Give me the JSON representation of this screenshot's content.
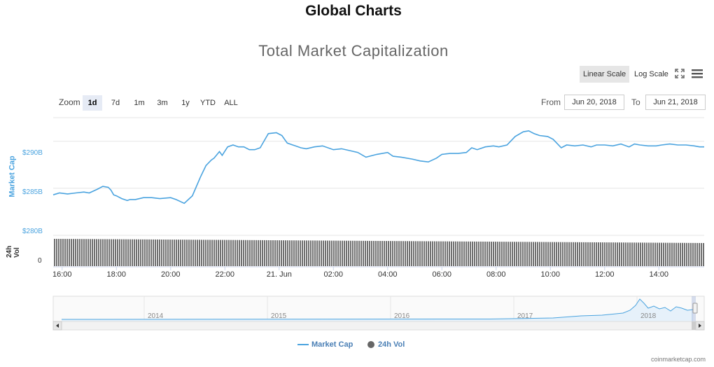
{
  "header": {
    "title": "Global Charts"
  },
  "controls": {
    "linear_label": "Linear Scale",
    "log_label": "Log Scale",
    "zoom_label": "Zoom",
    "zoom_buttons": [
      "1d",
      "7d",
      "1m",
      "3m",
      "1y",
      "YTD",
      "ALL"
    ],
    "from_label": "From",
    "from_value": "Jun 20, 2018",
    "to_label": "To",
    "to_value": "Jun 21, 2018",
    "selected_zoom": "1d",
    "active_scale": "linear",
    "icons": [
      "fullscreen-icon",
      "hamburger-menu-icon"
    ]
  },
  "chart_data": {
    "type": "line",
    "title": "Total Market Capitalization",
    "ylabel": "Market Cap",
    "y_tick_labels": [
      "$290B",
      "$285B",
      "$280B"
    ],
    "y_ticks": [
      290,
      285,
      280
    ],
    "ylim": [
      280,
      292.5
    ],
    "vol_label": "24h Vol",
    "vol_tick_label": "0",
    "x_tick_labels": [
      "16:00",
      "18:00",
      "20:00",
      "22:00",
      "21. Jun",
      "02:00",
      "04:00",
      "06:00",
      "08:00",
      "10:00",
      "12:00",
      "14:00"
    ],
    "x_tick_hours": [
      0,
      2,
      4,
      6,
      8,
      10,
      12,
      14,
      16,
      18,
      20,
      22
    ],
    "x_range_hours": [
      -0.33,
      23.67
    ],
    "series": [
      {
        "name": "Market Cap",
        "color": "#4aa3df",
        "x": [
          -0.33,
          -0.1,
          0.2,
          0.5,
          0.8,
          1.0,
          1.3,
          1.5,
          1.7,
          1.8,
          1.9,
          2.0,
          2.2,
          2.4,
          2.5,
          2.7,
          3.0,
          3.3,
          3.6,
          4.0,
          4.2,
          4.5,
          4.8,
          5.1,
          5.3,
          5.5,
          5.6,
          5.8,
          5.9,
          6.1,
          6.3,
          6.5,
          6.7,
          6.9,
          7.1,
          7.3,
          7.6,
          7.9,
          8.1,
          8.3,
          8.5,
          8.6,
          8.8,
          9.0,
          9.3,
          9.6,
          10.0,
          10.3,
          10.6,
          10.9,
          11.2,
          11.6,
          12.0,
          12.2,
          12.5,
          12.9,
          13.2,
          13.5,
          13.8,
          14.0,
          14.3,
          14.6,
          14.9,
          15.1,
          15.3,
          15.6,
          15.9,
          16.1,
          16.4,
          16.7,
          17.0,
          17.2,
          17.4,
          17.6,
          17.9,
          18.1,
          18.4,
          18.6,
          18.9,
          19.2,
          19.5,
          19.7,
          20.0,
          20.3,
          20.6,
          20.9,
          21.1,
          21.3,
          21.6,
          21.9,
          22.1,
          22.4,
          22.7,
          23.0,
          23.3,
          23.5,
          23.67
        ],
        "values": [
          284.3,
          284.5,
          284.4,
          284.5,
          284.6,
          284.5,
          284.9,
          285.2,
          285.1,
          284.8,
          284.3,
          284.2,
          283.9,
          283.7,
          283.8,
          283.8,
          284.0,
          284.0,
          283.9,
          284.0,
          283.8,
          283.4,
          284.2,
          286.2,
          287.4,
          288.0,
          288.2,
          288.9,
          288.5,
          289.4,
          289.6,
          289.4,
          289.4,
          289.1,
          289.1,
          289.3,
          290.8,
          290.9,
          290.6,
          289.8,
          289.6,
          289.5,
          289.3,
          289.2,
          289.4,
          289.5,
          289.1,
          289.2,
          289.0,
          288.8,
          288.3,
          288.6,
          288.8,
          288.4,
          288.3,
          288.1,
          287.9,
          287.8,
          288.2,
          288.6,
          288.7,
          288.7,
          288.8,
          289.3,
          289.1,
          289.4,
          289.5,
          289.4,
          289.6,
          290.5,
          291.0,
          291.1,
          290.8,
          290.6,
          290.5,
          290.2,
          289.3,
          289.6,
          289.5,
          289.6,
          289.4,
          289.6,
          289.6,
          289.5,
          289.7,
          289.4,
          289.7,
          289.6,
          289.5,
          289.5,
          289.6,
          289.7,
          289.6,
          289.6,
          289.5,
          289.4,
          289.4
        ]
      },
      {
        "name": "24h Vol",
        "color": "#666666"
      }
    ],
    "navigator_year_labels": [
      "2014",
      "2015",
      "2016",
      "2017",
      "2018"
    ],
    "legend_position": "bottom-center",
    "grid": true
  },
  "footer": {
    "credit": "coinmarketcap.com"
  }
}
